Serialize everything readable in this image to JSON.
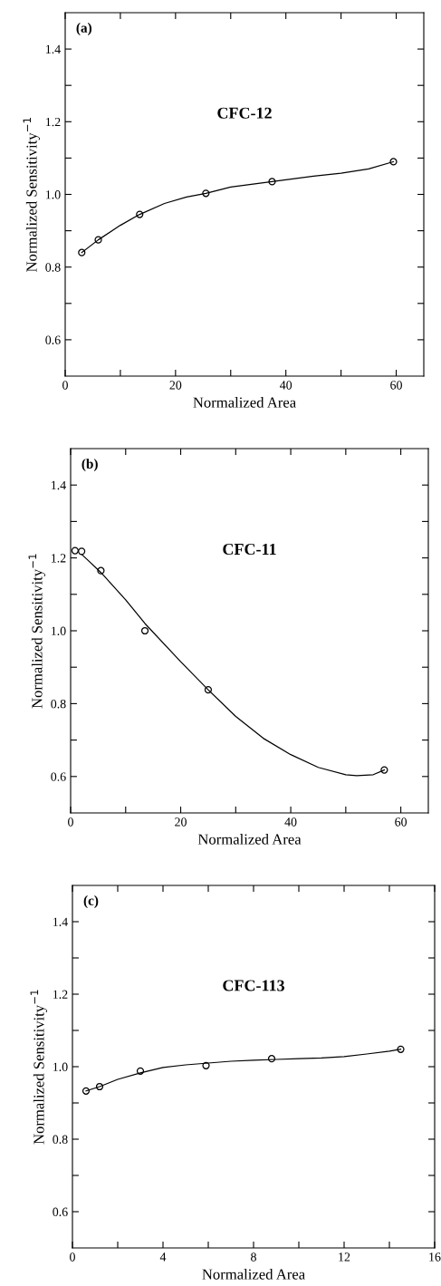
{
  "chart_data": [
    {
      "type": "scatter",
      "annotations": [
        "(a)",
        "CFC-12"
      ],
      "xlabel": "Normalized Area",
      "ylabel": "Normalized Sensitivity$^{−1}$",
      "xlim": [
        0,
        65
      ],
      "xticks": [
        0,
        {
          "value": 10,
          "label": null
        },
        20,
        {
          "value": 30,
          "label": null
        },
        40,
        {
          "value": 50,
          "label": null
        },
        60
      ],
      "ylim": [
        0.5,
        1.5
      ],
      "yticks": [
        0.6,
        {
          "value": 0.7,
          "label": null
        },
        0.8,
        {
          "value": 0.9,
          "label": null
        },
        {
          "value": 1.0,
          "label": "1.0"
        },
        {
          "value": 1.1,
          "label": null
        },
        1.2,
        {
          "value": 1.3,
          "label": null
        },
        1.4
      ],
      "series": [
        {
          "marker": "circle",
          "color": "#000000",
          "x": [
            3,
            6,
            13.5,
            25.5,
            37.5,
            59.5
          ],
          "values": [
            0.84,
            0.875,
            0.945,
            1.003,
            1.035,
            1.09
          ]
        },
        {
          "type": "line",
          "color": "#000000",
          "x": [
            3,
            6,
            10,
            13.5,
            18,
            22,
            25.5,
            30,
            37.5,
            45,
            50,
            55,
            59.5
          ],
          "values": [
            0.84,
            0.875,
            0.915,
            0.945,
            0.975,
            0.993,
            1.003,
            1.02,
            1.035,
            1.05,
            1.058,
            1.07,
            1.09
          ]
        }
      ]
    },
    {
      "type": "scatter",
      "annotations": [
        "(b)",
        "CFC-11"
      ],
      "xlabel": "Normalized Area",
      "ylabel": "Normalized Sensitivity$^{−1}$",
      "xlim": [
        0,
        65
      ],
      "xticks": [
        0,
        {
          "value": 10,
          "label": null
        },
        20,
        {
          "value": 30,
          "label": null
        },
        40,
        {
          "value": 50,
          "label": null
        },
        60
      ],
      "ylim": [
        0.5,
        1.5
      ],
      "yticks": [
        0.6,
        {
          "value": 0.7,
          "label": null
        },
        0.8,
        {
          "value": 0.9,
          "label": null
        },
        {
          "value": 1.0,
          "label": "1.0"
        },
        {
          "value": 1.1,
          "label": null
        },
        1.2,
        {
          "value": 1.3,
          "label": null
        },
        1.4
      ],
      "series": [
        {
          "marker": "circle",
          "color": "#000000",
          "x": [
            0.8,
            2,
            5.5,
            13.5,
            25,
            57
          ],
          "values": [
            1.22,
            1.218,
            1.165,
            1.0,
            0.838,
            0.618
          ]
        },
        {
          "type": "line",
          "color": "#000000",
          "x": [
            2,
            5.5,
            10,
            13.5,
            20,
            25,
            30,
            35,
            40,
            45,
            50,
            52,
            55,
            57
          ],
          "values": [
            1.21,
            1.16,
            1.085,
            1.02,
            0.915,
            0.838,
            0.765,
            0.705,
            0.66,
            0.625,
            0.605,
            0.602,
            0.605,
            0.618
          ]
        }
      ]
    },
    {
      "type": "scatter",
      "annotations": [
        "(c)",
        "CFC-113"
      ],
      "xlabel": "Normalized Area",
      "ylabel": "Normalized Sensitivity$^{−1}$",
      "xlim": [
        0,
        16
      ],
      "xticks": [
        0,
        {
          "value": 2,
          "label": null
        },
        4,
        {
          "value": 6,
          "label": null
        },
        8,
        {
          "value": 10,
          "label": null
        },
        12,
        {
          "value": 14,
          "label": null
        },
        16
      ],
      "ylim": [
        0.5,
        1.5
      ],
      "yticks": [
        0.6,
        {
          "value": 0.7,
          "label": null
        },
        0.8,
        {
          "value": 0.9,
          "label": null
        },
        {
          "value": 1.0,
          "label": "1.0"
        },
        {
          "value": 1.1,
          "label": null
        },
        1.2,
        {
          "value": 1.3,
          "label": null
        },
        1.4
      ],
      "series": [
        {
          "marker": "circle",
          "color": "#000000",
          "x": [
            0.6,
            1.2,
            3,
            5.9,
            8.8,
            14.5
          ],
          "values": [
            0.933,
            0.945,
            0.988,
            1.003,
            1.022,
            1.048
          ]
        },
        {
          "type": "line",
          "color": "#000000",
          "x": [
            0.6,
            1.2,
            2,
            3,
            4,
            5,
            6,
            7,
            8,
            9,
            10,
            11,
            12,
            13,
            14,
            14.5
          ],
          "values": [
            0.933,
            0.945,
            0.965,
            0.983,
            0.998,
            1.005,
            1.01,
            1.015,
            1.018,
            1.02,
            1.022,
            1.024,
            1.028,
            1.035,
            1.043,
            1.048
          ]
        }
      ]
    }
  ]
}
